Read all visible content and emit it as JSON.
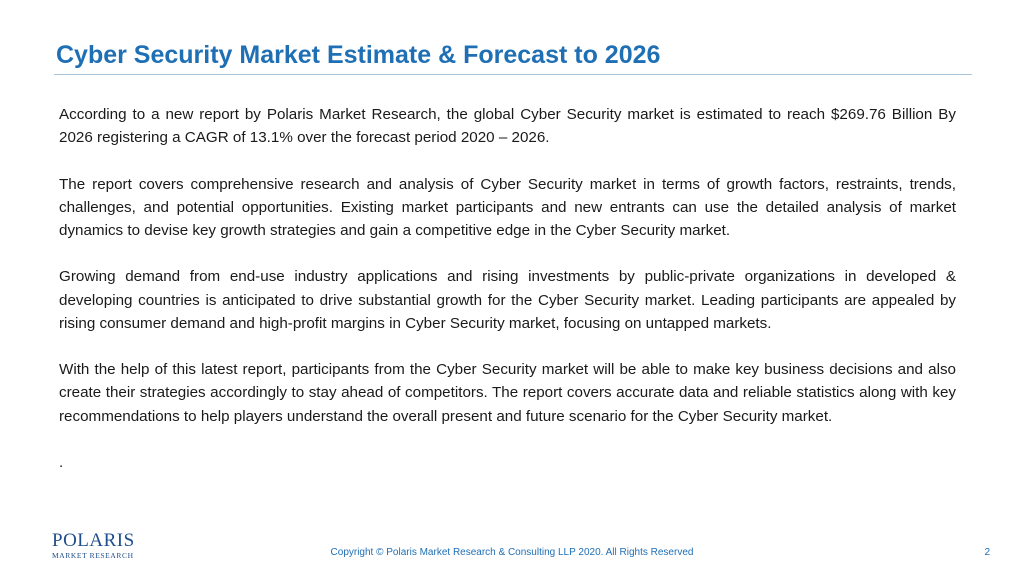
{
  "slide": {
    "title": "Cyber Security Market Estimate & Forecast to 2026",
    "paragraphs": [
      "According to a new report by Polaris Market Research, the global Cyber Security market is estimated to reach $269.76 Billion By 2026 registering a CAGR of 13.1% over the forecast period 2020 – 2026.",
      "The report covers comprehensive research and analysis of Cyber Security market in terms of growth factors, restraints, trends, challenges, and potential opportunities. Existing market participants and new entrants can use the detailed analysis of market dynamics to devise key growth strategies and gain a competitive edge in the Cyber Security market.",
      "Growing demand from end-use industry applications and rising investments by public-private organizations in developed & developing countries is anticipated to drive substantial growth for the Cyber Security market. Leading participants are appealed by rising consumer demand and high-profit margins in Cyber Security market, focusing on untapped markets.",
      "With the help of this latest report, participants from the Cyber Security market will be able to make key business decisions and also create their strategies accordingly to stay ahead of competitors. The report covers accurate data and reliable statistics along with key recommendations to help players understand the overall present and future scenario for the Cyber Security market."
    ],
    "trailing_mark": "."
  },
  "footer": {
    "logo_name": "POLARIS",
    "logo_subtitle": "MARKET RESEARCH",
    "copyright": "Copyright © Polaris Market Research & Consulting LLP 2020. All Rights Reserved",
    "page_number": "2"
  },
  "colors": {
    "title": "#1f6fb5",
    "body_text": "#1a1a1a",
    "rule": "#a9c4dd",
    "logo": "#1f4e8c",
    "footer_text": "#1f6fb5"
  }
}
